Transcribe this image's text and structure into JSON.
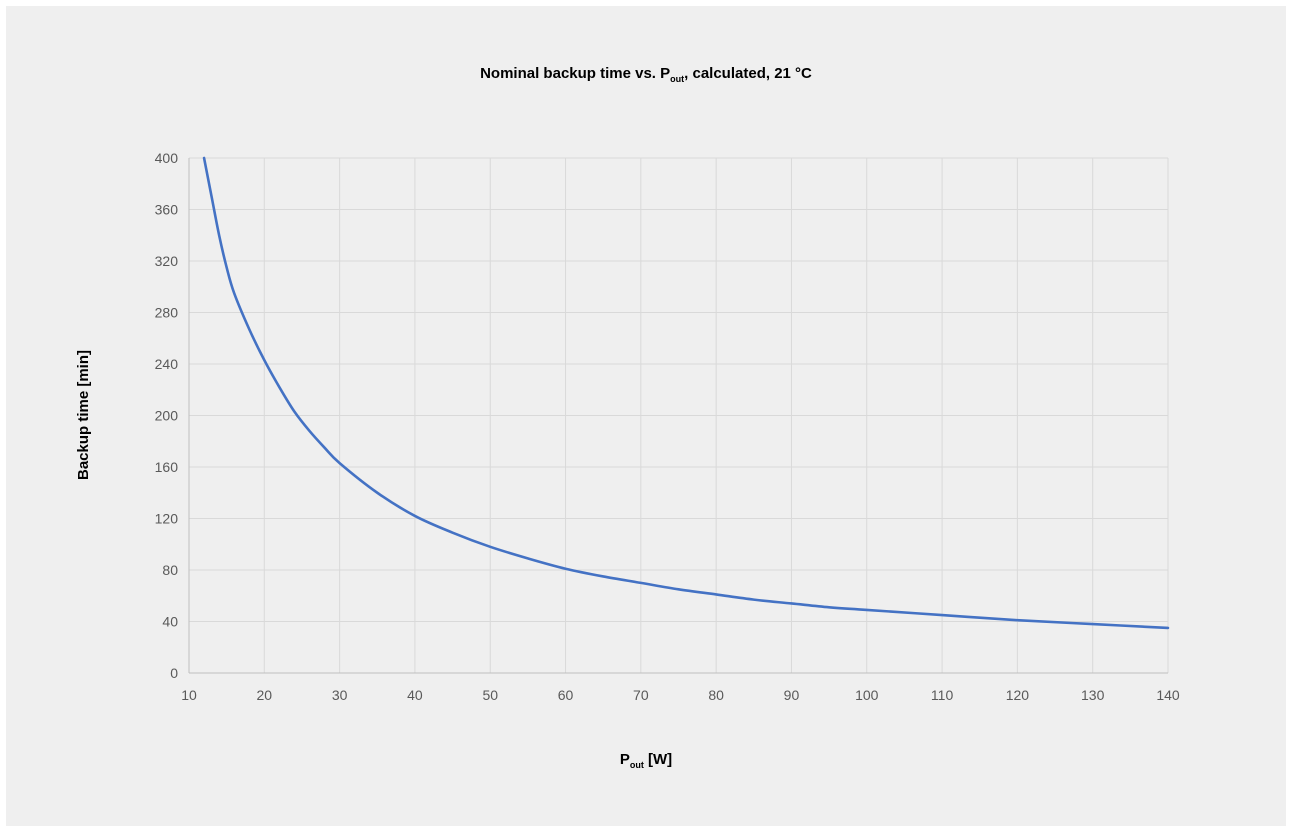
{
  "chart_data": {
    "type": "line",
    "title": {
      "main": "Nominal backup time vs. P",
      "sub": "out",
      "rest": ", calculated, 21 °C"
    },
    "xlabel": {
      "main": "P",
      "sub": "out",
      "rest": " [W]"
    },
    "ylabel": "Backup time [min]",
    "xlim": [
      10,
      140
    ],
    "ylim": [
      0,
      400
    ],
    "xticks": [
      10,
      20,
      30,
      40,
      50,
      60,
      70,
      80,
      90,
      100,
      110,
      120,
      130,
      140
    ],
    "yticks": [
      0,
      40,
      80,
      120,
      160,
      200,
      240,
      280,
      320,
      360,
      400
    ],
    "grid": true,
    "series": [
      {
        "color": "#4472c4",
        "x": [
          12,
          13,
          14,
          15,
          16,
          18,
          20,
          22,
          24,
          26,
          28,
          30,
          35,
          40,
          45,
          50,
          55,
          60,
          65,
          70,
          75,
          80,
          85,
          90,
          95,
          100,
          110,
          120,
          130,
          140
        ],
        "y": [
          400,
          370,
          340,
          315,
          295,
          267,
          243,
          222,
          203,
          188,
          175,
          163,
          140,
          122,
          109,
          98,
          89,
          81,
          75,
          70,
          65,
          61,
          57,
          54,
          51,
          49,
          45,
          41,
          38,
          35
        ]
      }
    ]
  }
}
